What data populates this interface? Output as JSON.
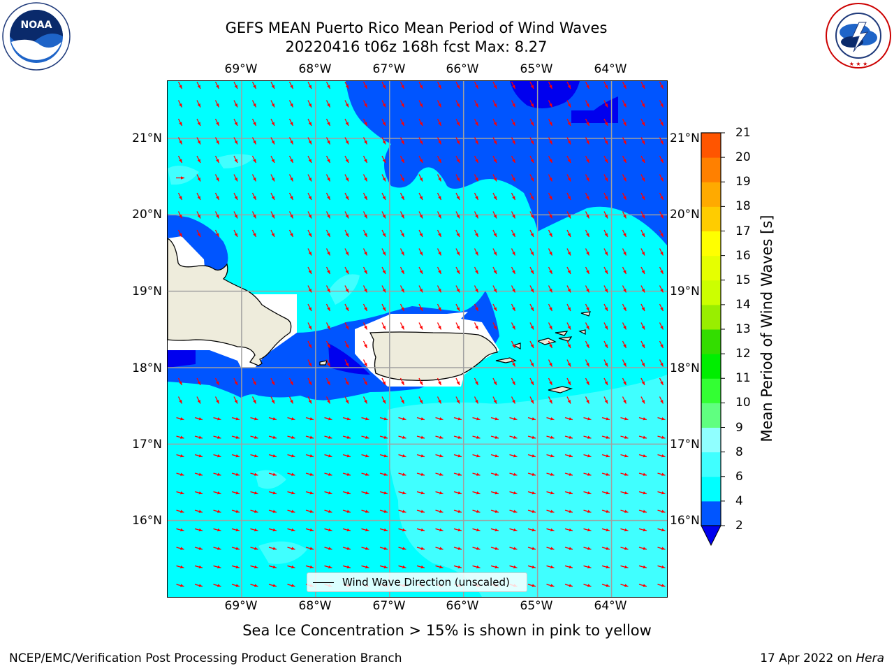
{
  "title": {
    "line1": "GEFS MEAN Puerto Rico Mean Period of Wind Waves",
    "line2": "20220416 t06z 168h fcst   Max: 8.27"
  },
  "map": {
    "longitude_labels": [
      "69°W",
      "68°W",
      "67°W",
      "66°W",
      "65°W",
      "64°W"
    ],
    "latitude_labels": [
      "21°N",
      "20°N",
      "19°N",
      "18°N",
      "17°N",
      "16°N"
    ],
    "lon_range": [
      -70.0,
      -63.25
    ],
    "lat_range": [
      15.0,
      21.75
    ],
    "legend_label": "Wind Wave Direction (unscaled)",
    "arrow_color": "#ff0000",
    "land_color": "#eeecdc"
  },
  "colorbar": {
    "title": "Mean Period of Wind Waves [s]",
    "ticks": [
      "2",
      "4",
      "6",
      "8",
      "9",
      "10",
      "11",
      "12",
      "13",
      "14",
      "15",
      "16",
      "17",
      "18",
      "19",
      "20",
      "21"
    ],
    "colors": [
      "#0055ff",
      "#00ffff",
      "#40ffff",
      "#90ffff",
      "#60ff80",
      "#33ff33",
      "#00ee00",
      "#33dd00",
      "#99ee00",
      "#ccff00",
      "#e6ff00",
      "#ffff00",
      "#ffcc00",
      "#ffaa00",
      "#ff8000",
      "#ff5500",
      "#ff2200",
      "#ff0000"
    ],
    "extend_color": "#0000ee"
  },
  "footer": {
    "note": "Sea Ice Concentration > 15% is shown in pink to yellow",
    "credit_left": "NCEP/EMC/Verification Post Processing Product Generation Branch",
    "date": "17 Apr 2022 on",
    "machine": "Hera"
  },
  "logos": {
    "left": "NOAA",
    "left_ring_text": "NATIONAL OCEANIC AND ATMOSPHERIC ADMINISTRATION · U.S. DEPARTMENT OF COMMERCE",
    "right_ring_text": "NATIONAL WEATHER SERVICE"
  }
}
